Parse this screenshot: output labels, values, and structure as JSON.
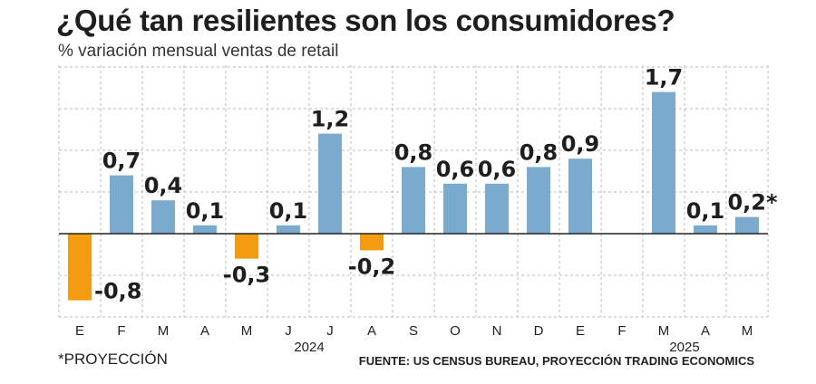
{
  "header": {
    "title": "¿Qué tan resilientes son los consumidores?",
    "subtitle": "% variación mensual ventas de retail"
  },
  "footer": {
    "note": "*PROYECCIÓN",
    "source": "FUENTE: US CENSUS BUREAU, PROYECCIÓN TRADING ECONOMICS"
  },
  "colors": {
    "positive": "#7aaacd",
    "negative": "#f39c12",
    "grid": "#bbbbbb",
    "zero_line": "#222222"
  },
  "chart_data": {
    "type": "bar",
    "title": "¿Qué tan resilientes son los consumidores?",
    "subtitle": "% variación mensual ventas de retail",
    "categories": [
      "E",
      "F",
      "M",
      "A",
      "M",
      "J",
      "J",
      "A",
      "S",
      "O",
      "N",
      "D",
      "E",
      "F",
      "M",
      "A",
      "M"
    ],
    "values": [
      -0.8,
      0.7,
      0.4,
      0.1,
      -0.3,
      0.1,
      1.2,
      -0.2,
      0.8,
      0.6,
      0.6,
      0.8,
      0.9,
      null,
      1.7,
      0.1,
      0.2
    ],
    "value_labels": [
      "-0,8",
      "0,7",
      "0,4",
      "0,1",
      "-0,3",
      "0,1",
      "1,2",
      "-0,2",
      "0,8",
      "0,6",
      "0,6",
      "0,8",
      "0,9",
      "",
      "1,7",
      "0,1",
      "0,2*"
    ],
    "year_labels": [
      {
        "label": "2024",
        "category_index": 5.5
      },
      {
        "label": "2025",
        "category_index": 14.5
      }
    ],
    "ylim": [
      -1.0,
      2.0
    ],
    "grid": true,
    "grid_style": "dashed",
    "xlabel": "",
    "ylabel": ""
  }
}
